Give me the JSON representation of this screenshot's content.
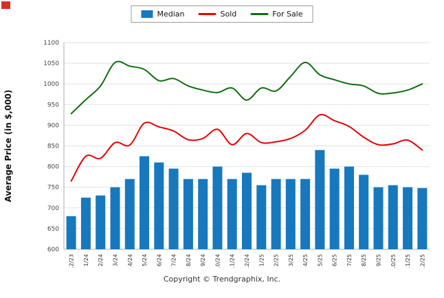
{
  "footer": {
    "copyright": "Copyright © Trendgraphix, Inc."
  },
  "chart_data": {
    "type": "combo",
    "title": "",
    "xlabel": "",
    "ylabel": "Average Price (in $,000)",
    "ylim": [
      600,
      1100
    ],
    "ytick_step": 50,
    "grid": true,
    "grid_color": "#e2e2e2",
    "axis_color": "#adadad",
    "legend_position": "top",
    "categories": [
      "12/23",
      "1/24",
      "2/24",
      "3/24",
      "4/24",
      "5/24",
      "6/24",
      "7/24",
      "8/24",
      "9/24",
      "10/24",
      "11/24",
      "12/24",
      "1/25",
      "2/25",
      "3/25",
      "4/25",
      "5/25",
      "6/25",
      "7/25",
      "8/25",
      "9/25",
      "10/25",
      "11/25",
      "12/25"
    ],
    "series": [
      {
        "name": "Median",
        "type": "bar",
        "color": "#1778be",
        "values": [
          680,
          725,
          730,
          750,
          770,
          825,
          810,
          795,
          770,
          770,
          800,
          770,
          785,
          755,
          770,
          770,
          770,
          840,
          795,
          800,
          780,
          750,
          755,
          750,
          748
        ]
      },
      {
        "name": "Sold",
        "type": "line",
        "color": "#e60000",
        "values": [
          765,
          825,
          820,
          858,
          852,
          905,
          896,
          886,
          865,
          868,
          890,
          853,
          880,
          858,
          860,
          868,
          888,
          925,
          911,
          897,
          871,
          853,
          855,
          864,
          840
        ]
      },
      {
        "name": "For Sale",
        "type": "line",
        "color": "#0d6d0d",
        "values": [
          928,
          962,
          995,
          1052,
          1043,
          1035,
          1008,
          1013,
          995,
          985,
          979,
          990,
          961,
          990,
          983,
          1018,
          1052,
          1022,
          1010,
          1000,
          995,
          977,
          978,
          985,
          1000
        ]
      }
    ]
  }
}
